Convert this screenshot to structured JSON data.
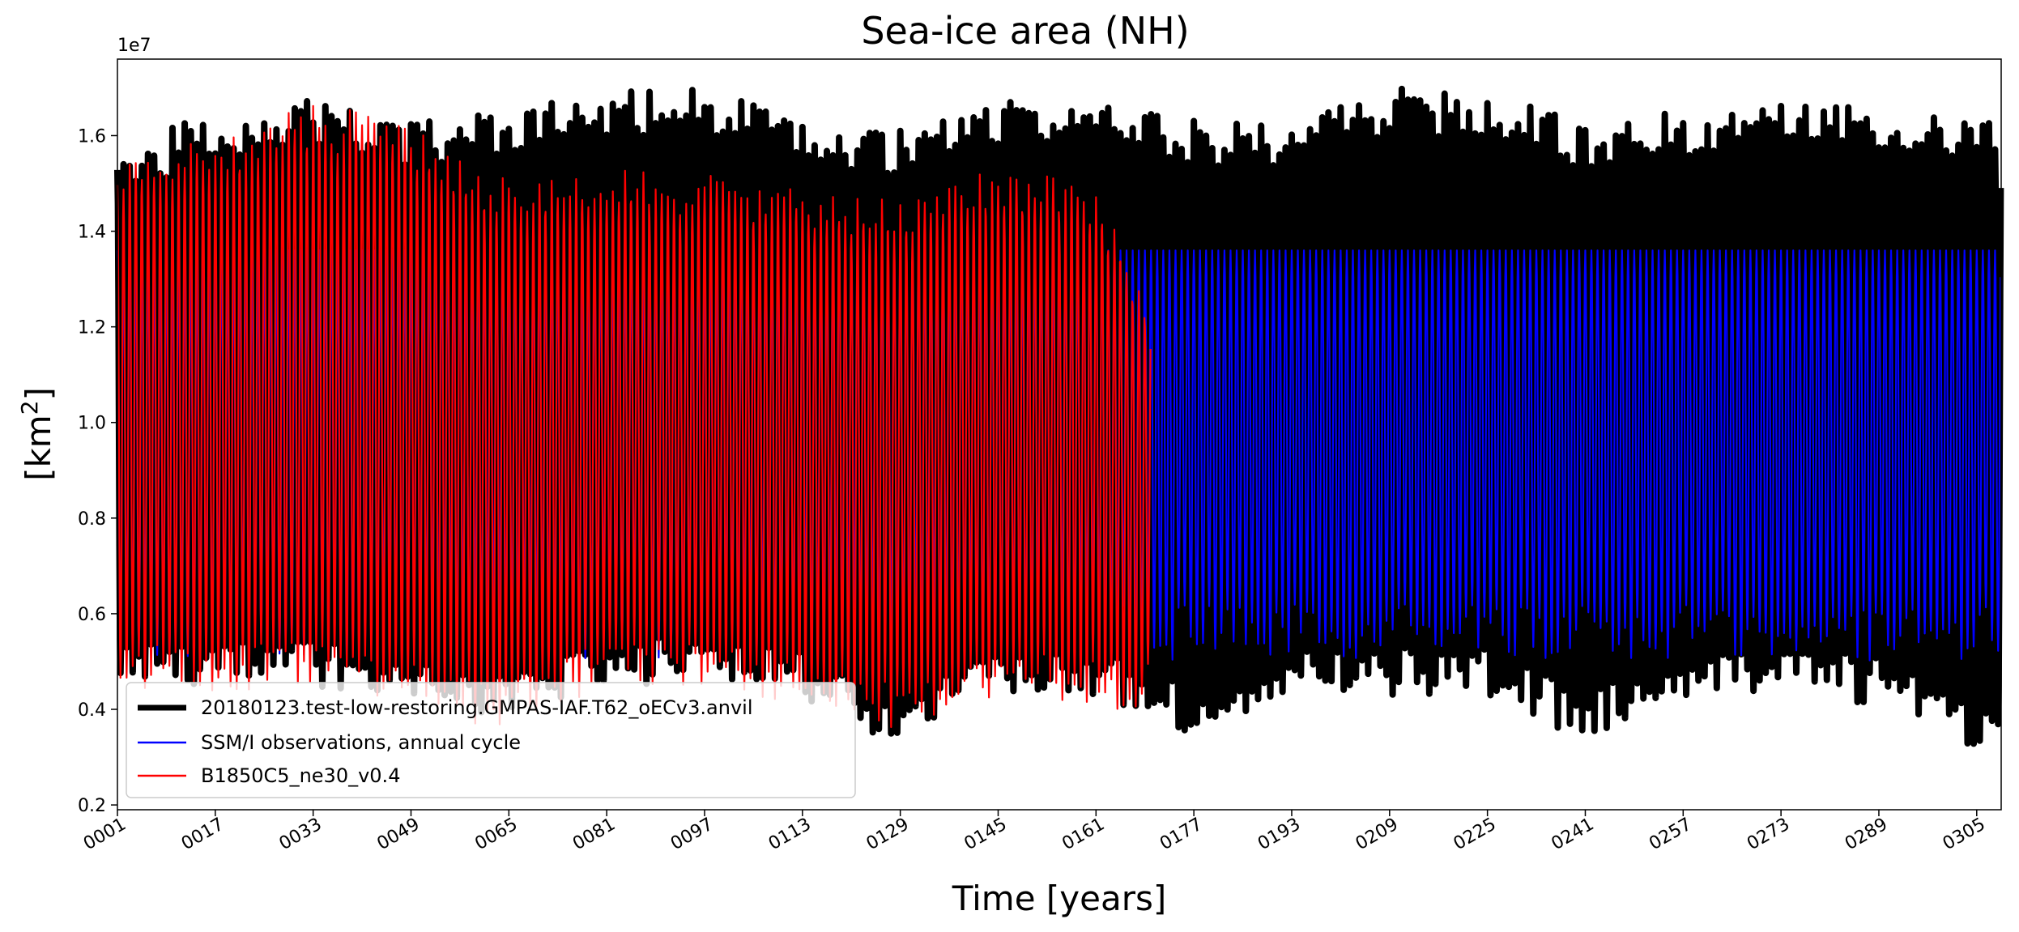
{
  "chart_data": {
    "type": "line",
    "title": "Sea-ice area (NH)",
    "xlabel": "Time [years]",
    "ylabel": "[km²]",
    "y_multiplier_label": "1e7",
    "xlim": [
      1,
      309
    ],
    "ylim": [
      0.19,
      1.76
    ],
    "y_units": "1e7 km²",
    "grid": false,
    "legend_position": "lower-left",
    "x_ticks": [
      "0001",
      "0017",
      "0033",
      "0049",
      "0065",
      "0081",
      "0097",
      "0113",
      "0129",
      "0145",
      "0161",
      "0177",
      "0193",
      "0209",
      "0225",
      "0241",
      "0257",
      "0273",
      "0289",
      "0305"
    ],
    "x_tick_values": [
      1,
      17,
      33,
      49,
      65,
      81,
      97,
      113,
      129,
      145,
      161,
      177,
      193,
      209,
      225,
      241,
      257,
      273,
      289,
      305
    ],
    "y_ticks": [
      "0.2",
      "0.4",
      "0.6",
      "0.8",
      "1.0",
      "1.2",
      "1.4",
      "1.6"
    ],
    "y_tick_values": [
      0.2,
      0.4,
      0.6,
      0.8,
      1.0,
      1.2,
      1.4,
      1.6
    ],
    "series": [
      {
        "name": "20180123.test-low-restoring.GMPAS-IAF.T62_oECv3.anvil",
        "color": "#000000",
        "x_range": [
          1,
          309
        ],
        "seasonal_cycle": true,
        "approx_annual_max": "1.50 to 1.68",
        "approx_annual_min": "0.33 to 0.50",
        "x": [
          1,
          17,
          33,
          49,
          65,
          81,
          97,
          113,
          129,
          145,
          161,
          177,
          193,
          209,
          225,
          241,
          257,
          273,
          289,
          305
        ],
        "annual_max": [
          1.52,
          1.6,
          1.63,
          1.58,
          1.6,
          1.64,
          1.66,
          1.58,
          1.56,
          1.63,
          1.62,
          1.59,
          1.58,
          1.65,
          1.64,
          1.58,
          1.6,
          1.65,
          1.62,
          1.58
        ],
        "annual_min": [
          0.48,
          0.5,
          0.5,
          0.45,
          0.42,
          0.5,
          0.5,
          0.47,
          0.37,
          0.48,
          0.48,
          0.39,
          0.47,
          0.48,
          0.48,
          0.38,
          0.48,
          0.48,
          0.46,
          0.37
        ]
      },
      {
        "name": "SSM/I observations, annual cycle",
        "color": "#0000ff",
        "x_range": [
          1,
          309
        ],
        "seasonal_cycle": true,
        "annual_max": 1.36,
        "annual_min": 0.5
      },
      {
        "name": "B1850C5_ne30_v0.4",
        "color": "#ff0000",
        "x_range": [
          1,
          170
        ],
        "seasonal_cycle": true,
        "x": [
          1,
          17,
          33,
          49,
          65,
          81,
          97,
          113,
          129,
          145,
          161,
          170
        ],
        "annual_max": [
          1.5,
          1.55,
          1.62,
          1.58,
          1.46,
          1.48,
          1.47,
          1.44,
          1.42,
          1.48,
          1.46,
          1.2
        ],
        "annual_min": [
          0.5,
          0.48,
          0.5,
          0.45,
          0.4,
          0.5,
          0.5,
          0.45,
          0.4,
          0.48,
          0.45,
          0.45
        ]
      }
    ]
  }
}
